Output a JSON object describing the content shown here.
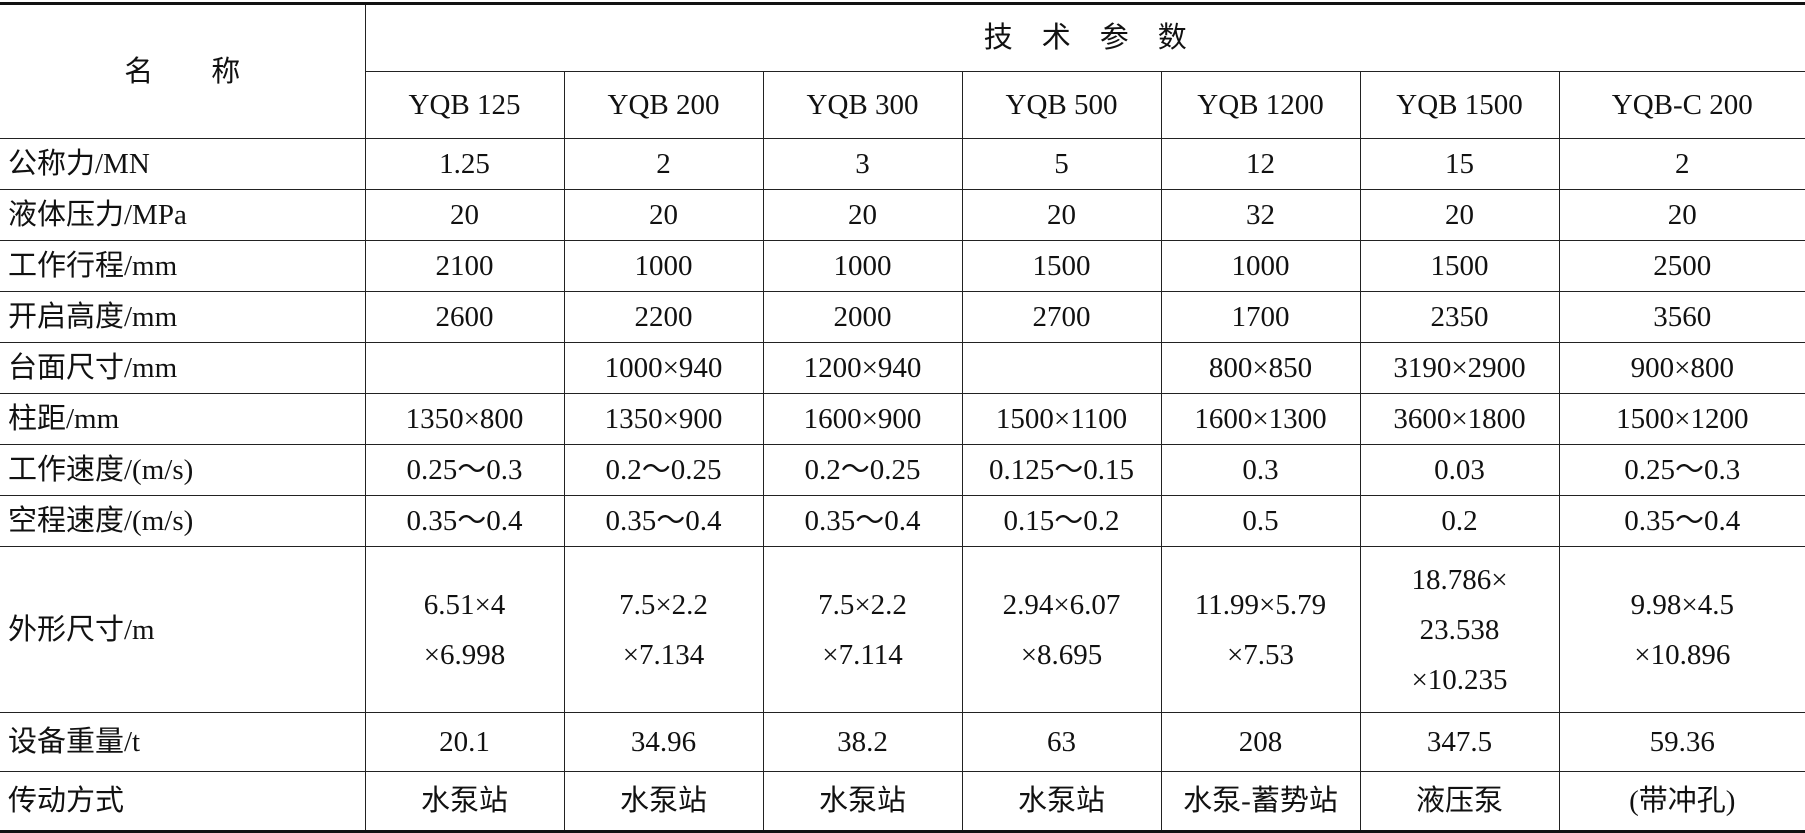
{
  "header": {
    "name": "名　　称",
    "group": "技　术　参　数",
    "models": [
      "YQB 125",
      "YQB 200",
      "YQB 300",
      "YQB 500",
      "YQB 1200",
      "YQB 1500",
      "YQB-C 200"
    ]
  },
  "rows": [
    {
      "label": "公称力/MN",
      "cells": [
        "1.25",
        "2",
        "3",
        "5",
        "12",
        "15",
        "2"
      ]
    },
    {
      "label": "液体压力/MPa",
      "cells": [
        "20",
        "20",
        "20",
        "20",
        "32",
        "20",
        "20"
      ]
    },
    {
      "label": "工作行程/mm",
      "cells": [
        "2100",
        "1000",
        "1000",
        "1500",
        "1000",
        "1500",
        "2500"
      ]
    },
    {
      "label": "开启高度/mm",
      "cells": [
        "2600",
        "2200",
        "2000",
        "2700",
        "1700",
        "2350",
        "3560"
      ]
    },
    {
      "label": "台面尺寸/mm",
      "cells": [
        null,
        "1000×940",
        "1200×940",
        null,
        "800×850",
        "3190×2900",
        "900×800"
      ]
    },
    {
      "label": "柱距/mm",
      "cells": [
        "1350×800",
        "1350×900",
        "1600×900",
        "1500×1100",
        "1600×1300",
        "3600×1800",
        "1500×1200"
      ]
    },
    {
      "label": "工作速度/(m/s)",
      "cells": [
        "0.25～0.3",
        "0.2～0.25",
        "0.2～0.25",
        "0.125～0.15",
        "0.3",
        "0.03",
        "0.25～0.3"
      ]
    },
    {
      "label": "空程速度/(m/s)",
      "cells": [
        "0.35～0.4",
        "0.35～0.4",
        "0.35～0.4",
        "0.15～0.2",
        "0.5",
        "0.2",
        "0.35～0.4"
      ]
    },
    {
      "label": "外形尺寸/m",
      "cells": [
        "6.51×4\n×6.998",
        "7.5×2.2\n×7.134",
        "7.5×2.2\n×7.114",
        "2.94×6.07\n×8.695",
        "11.99×5.79\n×7.53",
        "18.786×\n23.538\n×10.235",
        "9.98×4.5\n×10.896"
      ]
    },
    {
      "label": "设备重量/t",
      "cells": [
        "20.1",
        "34.96",
        "38.2",
        "63",
        "208",
        "347.5",
        "59.36"
      ]
    },
    {
      "label": "传动方式",
      "cells": [
        "水泵站",
        "水泵站",
        "水泵站",
        "水泵站",
        "水泵-蓄势站",
        "液压泵",
        "(带冲孔)"
      ]
    }
  ]
}
